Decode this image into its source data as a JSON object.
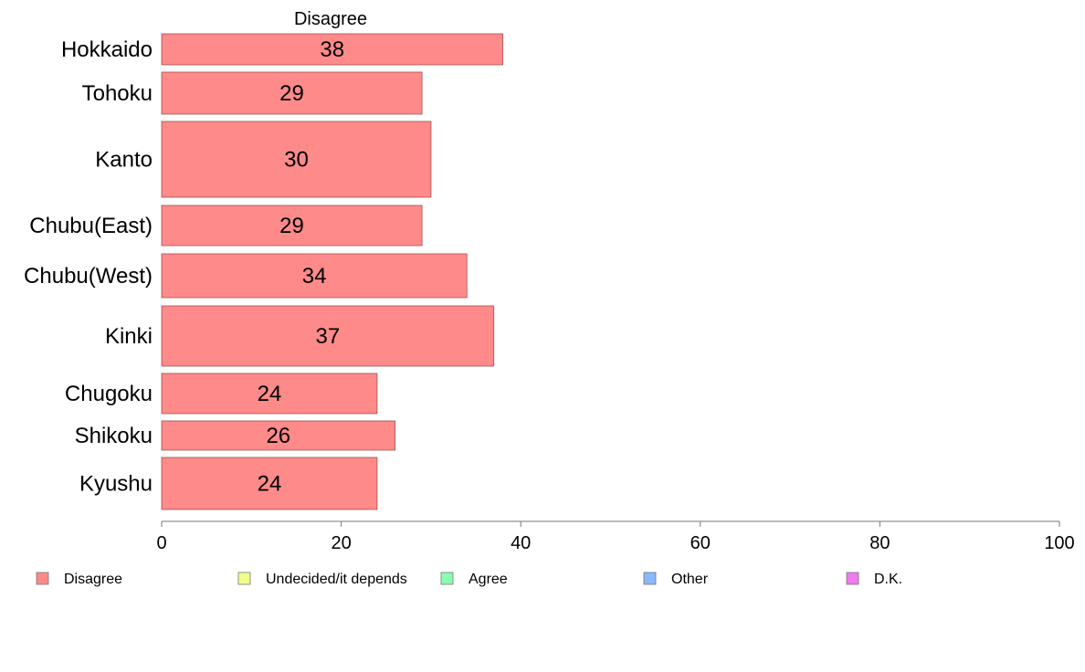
{
  "chart_data": {
    "type": "bar",
    "orientation": "horizontal",
    "title": "",
    "column_header": "Disagree",
    "categories": [
      "Hokkaido",
      "Tohoku",
      "Kanto",
      "Chubu(East)",
      "Chubu(West)",
      "Kinki",
      "Chugoku",
      "Shikoku",
      "Kyushu"
    ],
    "series": [
      {
        "name": "Disagree",
        "values": [
          38,
          29,
          30,
          29,
          34,
          37,
          24,
          26,
          24
        ],
        "color": "#ff8a8a"
      }
    ],
    "xlim": [
      0,
      100
    ],
    "xticks": [
      0,
      20,
      40,
      60,
      80,
      100
    ],
    "grid": false,
    "legend": {
      "placement": "bottom",
      "items": [
        {
          "label": "Disagree",
          "color": "#ff8a8a"
        },
        {
          "label": "Undecided/it depends",
          "color": "#f0ff8a"
        },
        {
          "label": "Agree",
          "color": "#8affb0"
        },
        {
          "label": "Other",
          "color": "#8ab8ff"
        },
        {
          "label": "D.K.",
          "color": "#f07af0"
        }
      ]
    }
  }
}
